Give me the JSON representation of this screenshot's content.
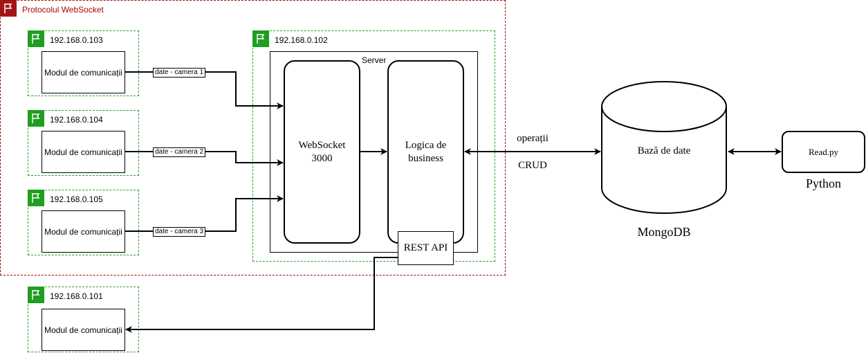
{
  "colors": {
    "websocket_group": "#b20000",
    "host_group": "#2a9d2a",
    "flag_green": "#1f9e1f",
    "flag_red": "#a31515"
  },
  "websocket_group": {
    "label": "Protocolul WebSocket",
    "icon": "flag-icon"
  },
  "hosts": [
    {
      "ip": "192.168.0.103",
      "module": "Modul de comunicații",
      "edge": "date - camera 1"
    },
    {
      "ip": "192.168.0.104",
      "module": "Modul de comunicații",
      "edge": "date - camera 2"
    },
    {
      "ip": "192.168.0.105",
      "module": "Modul de comunicații",
      "edge": "date - camera 3"
    },
    {
      "ip": "192.168.0.101",
      "module": "Modul de comunicații"
    }
  ],
  "server_host": {
    "ip": "192.168.0.102",
    "server_label": "Server",
    "websocket": "WebSocket\n3000",
    "business": "Logica de\nbusiness",
    "rest_api": "REST API"
  },
  "crud": {
    "line1": "operații",
    "line2": "CRUD"
  },
  "database": {
    "label": "Bază de date",
    "caption": "MongoDB"
  },
  "script": {
    "label": "Read.py",
    "caption": "Python"
  }
}
